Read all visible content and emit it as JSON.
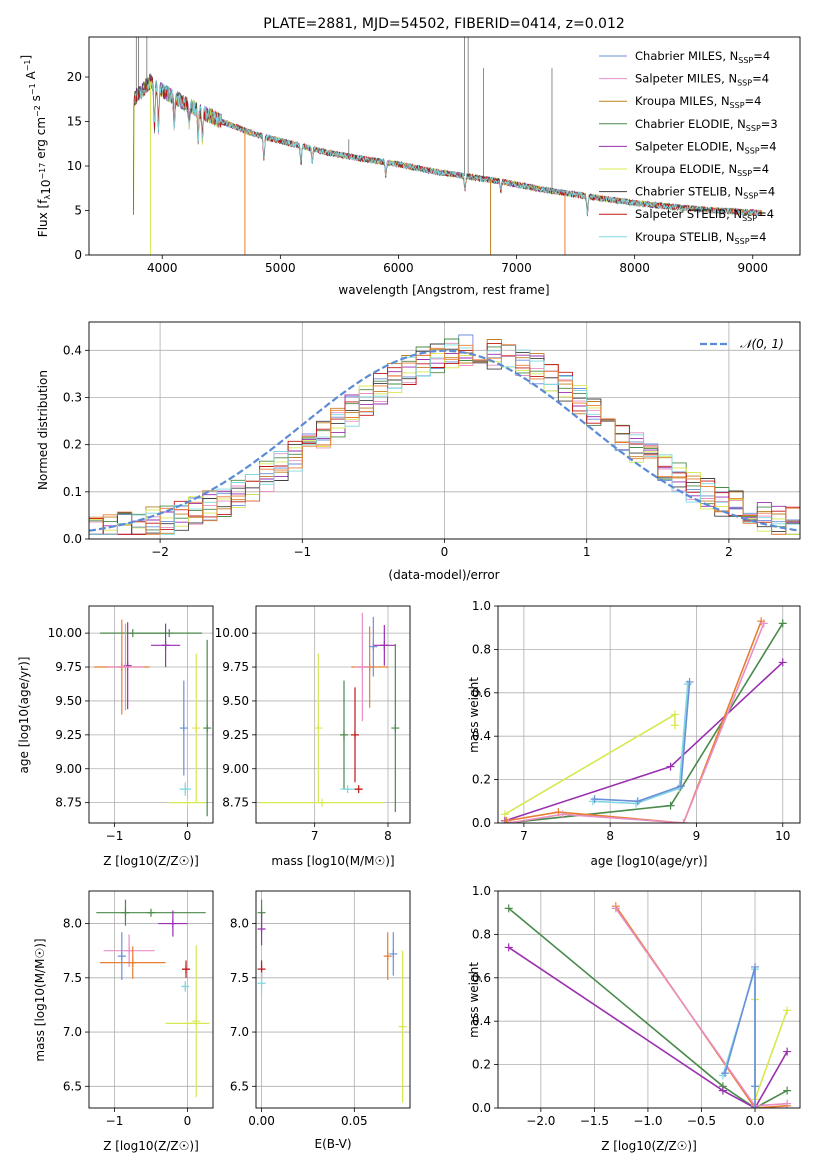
{
  "chart_data": [
    {
      "id": "spectrum",
      "type": "line",
      "title": "PLATE=2881, MJD=54502, FIBERID=0414, z=0.012",
      "xlabel": "wavelength [Angstrom, rest frame]",
      "ylabel": "Flux [f_λ 10^-17 erg cm^-2 s^-1 A^-1]",
      "xlim": [
        3380,
        9400
      ],
      "ylim": [
        0,
        24.5
      ],
      "xticks": [
        4000,
        5000,
        6000,
        7000,
        8000,
        9000
      ],
      "yticks": [
        0,
        5,
        10,
        15,
        20
      ],
      "grid": false,
      "legend_position": "top-right",
      "legend": [
        {
          "label": "Chabrier MILES, N_SSP=4",
          "base": "Chabrier MILES, N",
          "sub": "SSP",
          "tail": "=4",
          "color": "#6b8fd9"
        },
        {
          "label": "Salpeter MILES, N_SSP=4",
          "base": "Salpeter MILES, N",
          "sub": "SSP",
          "tail": "=4",
          "color": "#e88fc4"
        },
        {
          "label": "Kroupa MILES, N_SSP=4",
          "base": "Kroupa MILES, N",
          "sub": "SSP",
          "tail": "=4",
          "color": "#c08020"
        },
        {
          "label": "Chabrier ELODIE, N_SSP=3",
          "base": "Chabrier ELODIE, N",
          "sub": "SSP",
          "tail": "=3",
          "color": "#4a8a4a"
        },
        {
          "label": "Salpeter ELODIE, N_SSP=4",
          "base": "Salpeter ELODIE, N",
          "sub": "SSP",
          "tail": "=4",
          "color": "#9a2fb0"
        },
        {
          "label": "Kroupa ELODIE, N_SSP=4",
          "base": "Kroupa ELODIE, N",
          "sub": "SSP",
          "tail": "=4",
          "color": "#d8e850"
        },
        {
          "label": "Chabrier STELIB, N_SSP=4",
          "base": "Chabrier STELIB, N",
          "sub": "SSP",
          "tail": "=4",
          "color": "#404040"
        },
        {
          "label": "Salpeter STELIB, N_SSP=4",
          "base": "Salpeter STELIB, N",
          "sub": "SSP",
          "tail": "=4",
          "color": "#c01818"
        },
        {
          "label": "Kroupa STELIB, N_SSP=4",
          "base": "Kroupa STELIB, N",
          "sub": "SSP",
          "tail": "=4",
          "color": "#7fd8e0"
        }
      ],
      "continuum_points": [
        [
          3760,
          17.5
        ],
        [
          3900,
          19.5
        ],
        [
          4000,
          18.5
        ],
        [
          4200,
          17.0
        ],
        [
          4500,
          15.0
        ],
        [
          4800,
          13.5
        ],
        [
          5100,
          12.5
        ],
        [
          5400,
          11.5
        ],
        [
          5700,
          10.8
        ],
        [
          6000,
          10.2
        ],
        [
          6300,
          9.4
        ],
        [
          6600,
          8.8
        ],
        [
          6900,
          8.2
        ],
        [
          7200,
          7.4
        ],
        [
          7500,
          6.8
        ],
        [
          7800,
          6.2
        ],
        [
          8100,
          5.7
        ],
        [
          8400,
          5.3
        ],
        [
          8700,
          5.0
        ],
        [
          9000,
          4.8
        ],
        [
          9080,
          4.7
        ]
      ]
    },
    {
      "id": "residuals",
      "type": "line",
      "xlabel": "(data-model)/error",
      "ylabel": "Normed distribution",
      "xlim": [
        -2.5,
        2.5
      ],
      "ylim": [
        0,
        0.46
      ],
      "xticks": [
        -2,
        -1,
        0,
        1,
        2
      ],
      "yticks": [
        0.0,
        0.1,
        0.2,
        0.3,
        0.4
      ],
      "grid": true,
      "legend_position": "top-right",
      "legend": [
        {
          "label": "𝒩(0, 1)",
          "color": "#5b8bd4"
        }
      ]
    },
    {
      "id": "age_vs_Z",
      "type": "scatter",
      "xlabel": "Z [log10(Z/Z☉)]",
      "ylabel": "age [log10(age/yr)]",
      "xlim": [
        -1.35,
        0.35
      ],
      "ylim": [
        8.6,
        10.2
      ],
      "xticks": [
        -1,
        0
      ],
      "yticks": [
        8.75,
        9.0,
        9.25,
        9.5,
        9.75,
        10.0
      ],
      "grid": true,
      "points": [
        {
          "x": -0.75,
          "y": 10.0,
          "xerr": 0.45,
          "yerr": 0.0,
          "color": "#4a8a4a"
        },
        {
          "x": -0.25,
          "y": 10.0,
          "xerr": 0.45,
          "yerr": 0.0,
          "color": "#4a8a4a"
        },
        {
          "x": -0.82,
          "y": 9.76,
          "xerr": 0.02,
          "yerr": 0.32,
          "color": "#9a2fb0"
        },
        {
          "x": -0.9,
          "y": 9.75,
          "xerr": 0.38,
          "yerr": 0.35,
          "color": "#e87e30"
        },
        {
          "x": -0.85,
          "y": 9.75,
          "xerr": 0.25,
          "yerr": 0.32,
          "color": "#e88fc4"
        },
        {
          "x": -0.3,
          "y": 9.91,
          "xerr": 0.2,
          "yerr": 0.16,
          "color": "#9a2fb0"
        },
        {
          "x": -0.05,
          "y": 9.3,
          "xerr": 0.01,
          "yerr": 0.35,
          "color": "#6b8fd9"
        },
        {
          "x": -0.03,
          "y": 8.85,
          "xerr": 0.08,
          "yerr": 0.05,
          "color": "#7fd8e0"
        },
        {
          "x": 0.0,
          "y": 8.75,
          "xerr": 0.25,
          "yerr": 0.0,
          "color": "#d8e850"
        },
        {
          "x": 0.12,
          "y": 9.3,
          "xerr": 0.01,
          "yerr": 0.55,
          "color": "#d8e850"
        },
        {
          "x": 0.27,
          "y": 9.3,
          "xerr": 0.01,
          "yerr": 0.65,
          "color": "#4a8a4a"
        }
      ]
    },
    {
      "id": "age_vs_mass",
      "type": "scatter",
      "xlabel": "mass [log10(M/M☉)]",
      "ylabel": "",
      "xlim": [
        6.2,
        8.3
      ],
      "ylim": [
        8.6,
        10.2
      ],
      "xticks": [
        7,
        8
      ],
      "yticks": [
        8.75,
        9.0,
        9.25,
        9.5,
        9.75,
        10.0
      ],
      "grid": true,
      "points": [
        {
          "x": 7.1,
          "y": 8.75,
          "xerr": 0.85,
          "yerr": 0.0,
          "color": "#d8e850"
        },
        {
          "x": 7.05,
          "y": 9.3,
          "xerr": 0.01,
          "yerr": 0.55,
          "color": "#d8e850"
        },
        {
          "x": 7.4,
          "y": 9.25,
          "xerr": 0.01,
          "yerr": 0.4,
          "color": "#4a8a4a"
        },
        {
          "x": 7.45,
          "y": 8.85,
          "xerr": 0.1,
          "yerr": 0.0,
          "color": "#7fd8e0"
        },
        {
          "x": 7.55,
          "y": 9.25,
          "xerr": 0.01,
          "yerr": 0.35,
          "color": "#c01818"
        },
        {
          "x": 7.6,
          "y": 8.85,
          "xerr": 0.05,
          "yerr": 0.0,
          "color": "#c01818"
        },
        {
          "x": 7.75,
          "y": 9.75,
          "xerr": 0.25,
          "yerr": 0.3,
          "color": "#e87e30"
        },
        {
          "x": 7.65,
          "y": 9.75,
          "xerr": 0.1,
          "yerr": 0.4,
          "color": "#e88fc4"
        },
        {
          "x": 7.95,
          "y": 9.91,
          "xerr": 0.15,
          "yerr": 0.15,
          "color": "#9a2fb0"
        },
        {
          "x": 8.1,
          "y": 9.3,
          "xerr": 0.01,
          "yerr": 0.62,
          "color": "#4a8a4a"
        },
        {
          "x": 7.8,
          "y": 9.9,
          "xerr": 0.01,
          "yerr": 0.22,
          "color": "#6b8fd9"
        }
      ]
    },
    {
      "id": "massweight_vs_age",
      "type": "line",
      "xlabel": "age [log10(age/yr)]",
      "ylabel": "mass weight",
      "xlim": [
        6.7,
        10.2
      ],
      "ylim": [
        0.0,
        1.0
      ],
      "xticks": [
        7,
        8,
        9,
        10
      ],
      "yticks": [
        0.0,
        0.2,
        0.4,
        0.6,
        0.8,
        1.0
      ],
      "grid": true,
      "series": [
        {
          "color": "#d8e850",
          "x": [
            6.78,
            8.75,
            8.75
          ],
          "y": [
            0.04,
            0.5,
            0.45
          ]
        },
        {
          "color": "#9a2fb0",
          "x": [
            6.78,
            8.7,
            10.0
          ],
          "y": [
            0.01,
            0.26,
            0.74
          ]
        },
        {
          "color": "#4a8a4a",
          "x": [
            6.8,
            8.7,
            10.0
          ],
          "y": [
            0.0,
            0.08,
            0.92
          ]
        },
        {
          "color": "#e87e30",
          "x": [
            6.8,
            7.4,
            8.85,
            9.75
          ],
          "y": [
            0.01,
            0.05,
            0.0,
            0.93
          ]
        },
        {
          "color": "#e88fc4",
          "x": [
            6.82,
            7.45,
            8.85,
            9.78
          ],
          "y": [
            0.0,
            0.04,
            0.0,
            0.92
          ]
        },
        {
          "color": "#7fd8e0",
          "x": [
            7.8,
            8.3,
            8.8,
            8.9
          ],
          "y": [
            0.1,
            0.09,
            0.16,
            0.64
          ]
        },
        {
          "color": "#6b8fd9",
          "x": [
            7.82,
            8.32,
            8.82,
            8.92
          ],
          "y": [
            0.11,
            0.1,
            0.17,
            0.65
          ]
        }
      ]
    },
    {
      "id": "mass_vs_Z",
      "type": "scatter",
      "xlabel": "Z [log10(Z/Z☉)]",
      "ylabel": "mass [log10(M/M☉)]",
      "xlim": [
        -1.35,
        0.35
      ],
      "ylim": [
        6.3,
        8.3
      ],
      "xticks": [
        -1,
        0
      ],
      "yticks": [
        6.5,
        7.0,
        7.5,
        8.0
      ],
      "grid": true,
      "points": [
        {
          "x": -0.5,
          "y": 8.1,
          "xerr": 0.75,
          "yerr": 0.0,
          "color": "#4a8a4a"
        },
        {
          "x": -0.85,
          "y": 8.1,
          "xerr": 0.01,
          "yerr": 0.12,
          "color": "#4a8a4a"
        },
        {
          "x": -0.2,
          "y": 8.0,
          "xerr": 0.2,
          "yerr": 0.12,
          "color": "#9a2fb0"
        },
        {
          "x": -0.8,
          "y": 7.75,
          "xerr": 0.35,
          "yerr": 0.15,
          "color": "#e88fc4"
        },
        {
          "x": -0.75,
          "y": 7.64,
          "xerr": 0.45,
          "yerr": 0.15,
          "color": "#e87e30"
        },
        {
          "x": -0.9,
          "y": 7.7,
          "xerr": 0.01,
          "yerr": 0.22,
          "color": "#6b8fd9"
        },
        {
          "x": -0.02,
          "y": 7.58,
          "xerr": 0.05,
          "yerr": 0.08,
          "color": "#c01818"
        },
        {
          "x": -0.03,
          "y": 7.42,
          "xerr": 0.05,
          "yerr": 0.05,
          "color": "#7fd8e0"
        },
        {
          "x": 0.0,
          "y": 7.08,
          "xerr": 0.3,
          "yerr": 0.0,
          "color": "#d8e850"
        },
        {
          "x": 0.12,
          "y": 7.1,
          "xerr": 0.01,
          "yerr": 0.7,
          "color": "#d8e850"
        }
      ]
    },
    {
      "id": "mass_vs_EBV",
      "type": "scatter",
      "xlabel": "E(B-V)",
      "ylabel": "",
      "xlim": [
        -0.003,
        0.08
      ],
      "ylim": [
        6.3,
        8.3
      ],
      "xticks": [
        0.0,
        0.05
      ],
      "tick_labels": [
        "0.00",
        "0.05"
      ],
      "yticks": [
        6.5,
        7.0,
        7.5,
        8.0
      ],
      "grid": true,
      "points": [
        {
          "x": 0.0,
          "y": 8.1,
          "xerr": 0.0,
          "yerr": 0.12,
          "color": "#4a8a4a"
        },
        {
          "x": 0.0,
          "y": 7.95,
          "xerr": 0.0,
          "yerr": 0.15,
          "color": "#9a2fb0"
        },
        {
          "x": 0.0,
          "y": 7.58,
          "xerr": 0.0,
          "yerr": 0.08,
          "color": "#c01818"
        },
        {
          "x": 0.0,
          "y": 7.45,
          "xerr": 0.0,
          "yerr": 0.1,
          "color": "#7fd8e0"
        },
        {
          "x": 0.068,
          "y": 7.7,
          "xerr": 0.0,
          "yerr": 0.22,
          "color": "#e87e30"
        },
        {
          "x": 0.071,
          "y": 7.72,
          "xerr": 0.0,
          "yerr": 0.2,
          "color": "#6b8fd9"
        },
        {
          "x": 0.076,
          "y": 7.05,
          "xerr": 0.0,
          "yerr": 0.7,
          "color": "#d8e850"
        }
      ]
    },
    {
      "id": "massweight_vs_Z",
      "type": "line",
      "xlabel": "Z [log10(Z/Z☉)]",
      "ylabel": "mass weight",
      "xlim": [
        -2.4,
        0.42
      ],
      "ylim": [
        0.0,
        1.0
      ],
      "xticks": [
        -2.0,
        -1.5,
        -1.0,
        -0.5,
        0.0
      ],
      "yticks": [
        0.0,
        0.2,
        0.4,
        0.6,
        0.8,
        1.0
      ],
      "grid": true,
      "series": [
        {
          "color": "#4a8a4a",
          "x": [
            -2.3,
            -0.3,
            0.0,
            0.3
          ],
          "y": [
            0.92,
            0.1,
            0.0,
            0.08
          ]
        },
        {
          "color": "#9a2fb0",
          "x": [
            -2.3,
            -0.3,
            0.0,
            0.3
          ],
          "y": [
            0.74,
            0.08,
            0.0,
            0.26
          ]
        },
        {
          "color": "#e87e30",
          "x": [
            -1.3,
            0.0,
            0.3
          ],
          "y": [
            0.93,
            0.0,
            0.01
          ]
        },
        {
          "color": "#e88fc4",
          "x": [
            -1.3,
            0.0,
            0.3
          ],
          "y": [
            0.92,
            0.01,
            0.02
          ]
        },
        {
          "color": "#d8e850",
          "x": [
            0.0,
            0.0,
            0.3
          ],
          "y": [
            0.5,
            0.04,
            0.45
          ]
        },
        {
          "color": "#7fd8e0",
          "x": [
            -0.3,
            0.0,
            0.0,
            0.0
          ],
          "y": [
            0.15,
            0.64,
            0.1,
            0.0
          ]
        },
        {
          "color": "#6b8fd9",
          "x": [
            -0.28,
            0.0,
            0.0,
            0.0
          ],
          "y": [
            0.16,
            0.65,
            0.1,
            0.0
          ]
        }
      ]
    }
  ]
}
